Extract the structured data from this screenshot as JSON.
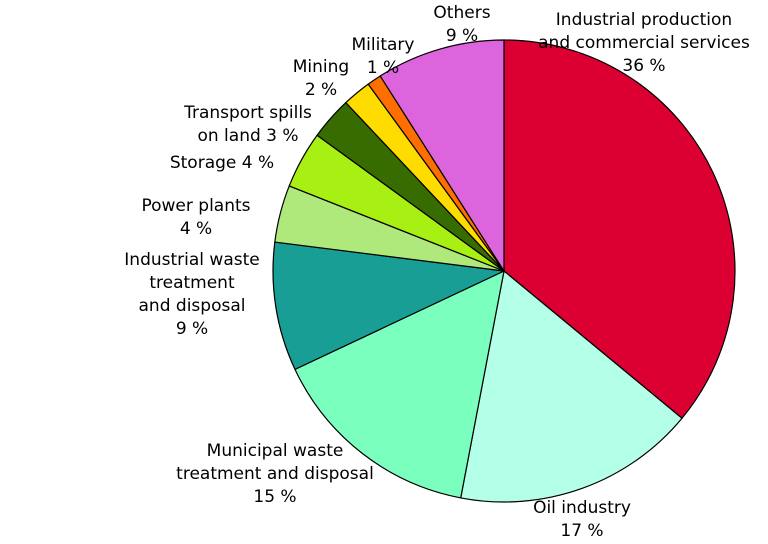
{
  "chart_data": {
    "type": "pie",
    "title": "",
    "start_angle_deg": 0,
    "direction": "clockwise",
    "slices": [
      {
        "label_lines": [
          "Industrial production",
          "and commercial services",
          "36 %"
        ],
        "value": 36,
        "color": "#dc0032"
      },
      {
        "label_lines": [
          "Oil industry",
          "17 %"
        ],
        "value": 17,
        "color": "#b3ffe8"
      },
      {
        "label_lines": [
          "Municipal waste",
          "treatment and disposal",
          "15 %"
        ],
        "value": 15,
        "color": "#7bffbf"
      },
      {
        "label_lines": [
          "Industrial waste",
          "treatment",
          "and disposal",
          "9 %"
        ],
        "value": 9,
        "color": "#199e96"
      },
      {
        "label_lines": [
          "Power plants",
          "4 %"
        ],
        "value": 4,
        "color": "#b0e97b"
      },
      {
        "label_lines": [
          "Storage 4 %"
        ],
        "value": 4,
        "color": "#a8ef14"
      },
      {
        "label_lines": [
          "Transport spills",
          "on land 3 %"
        ],
        "value": 3,
        "color": "#376c00"
      },
      {
        "label_lines": [
          "Mining",
          "2 %"
        ],
        "value": 2,
        "color": "#ffdc00"
      },
      {
        "label_lines": [
          "Military",
          "1 %"
        ],
        "value": 1,
        "color": "#ff6e00"
      },
      {
        "label_lines": [
          "Others",
          "9 %"
        ],
        "value": 9,
        "color": "#dc64dc"
      }
    ]
  }
}
